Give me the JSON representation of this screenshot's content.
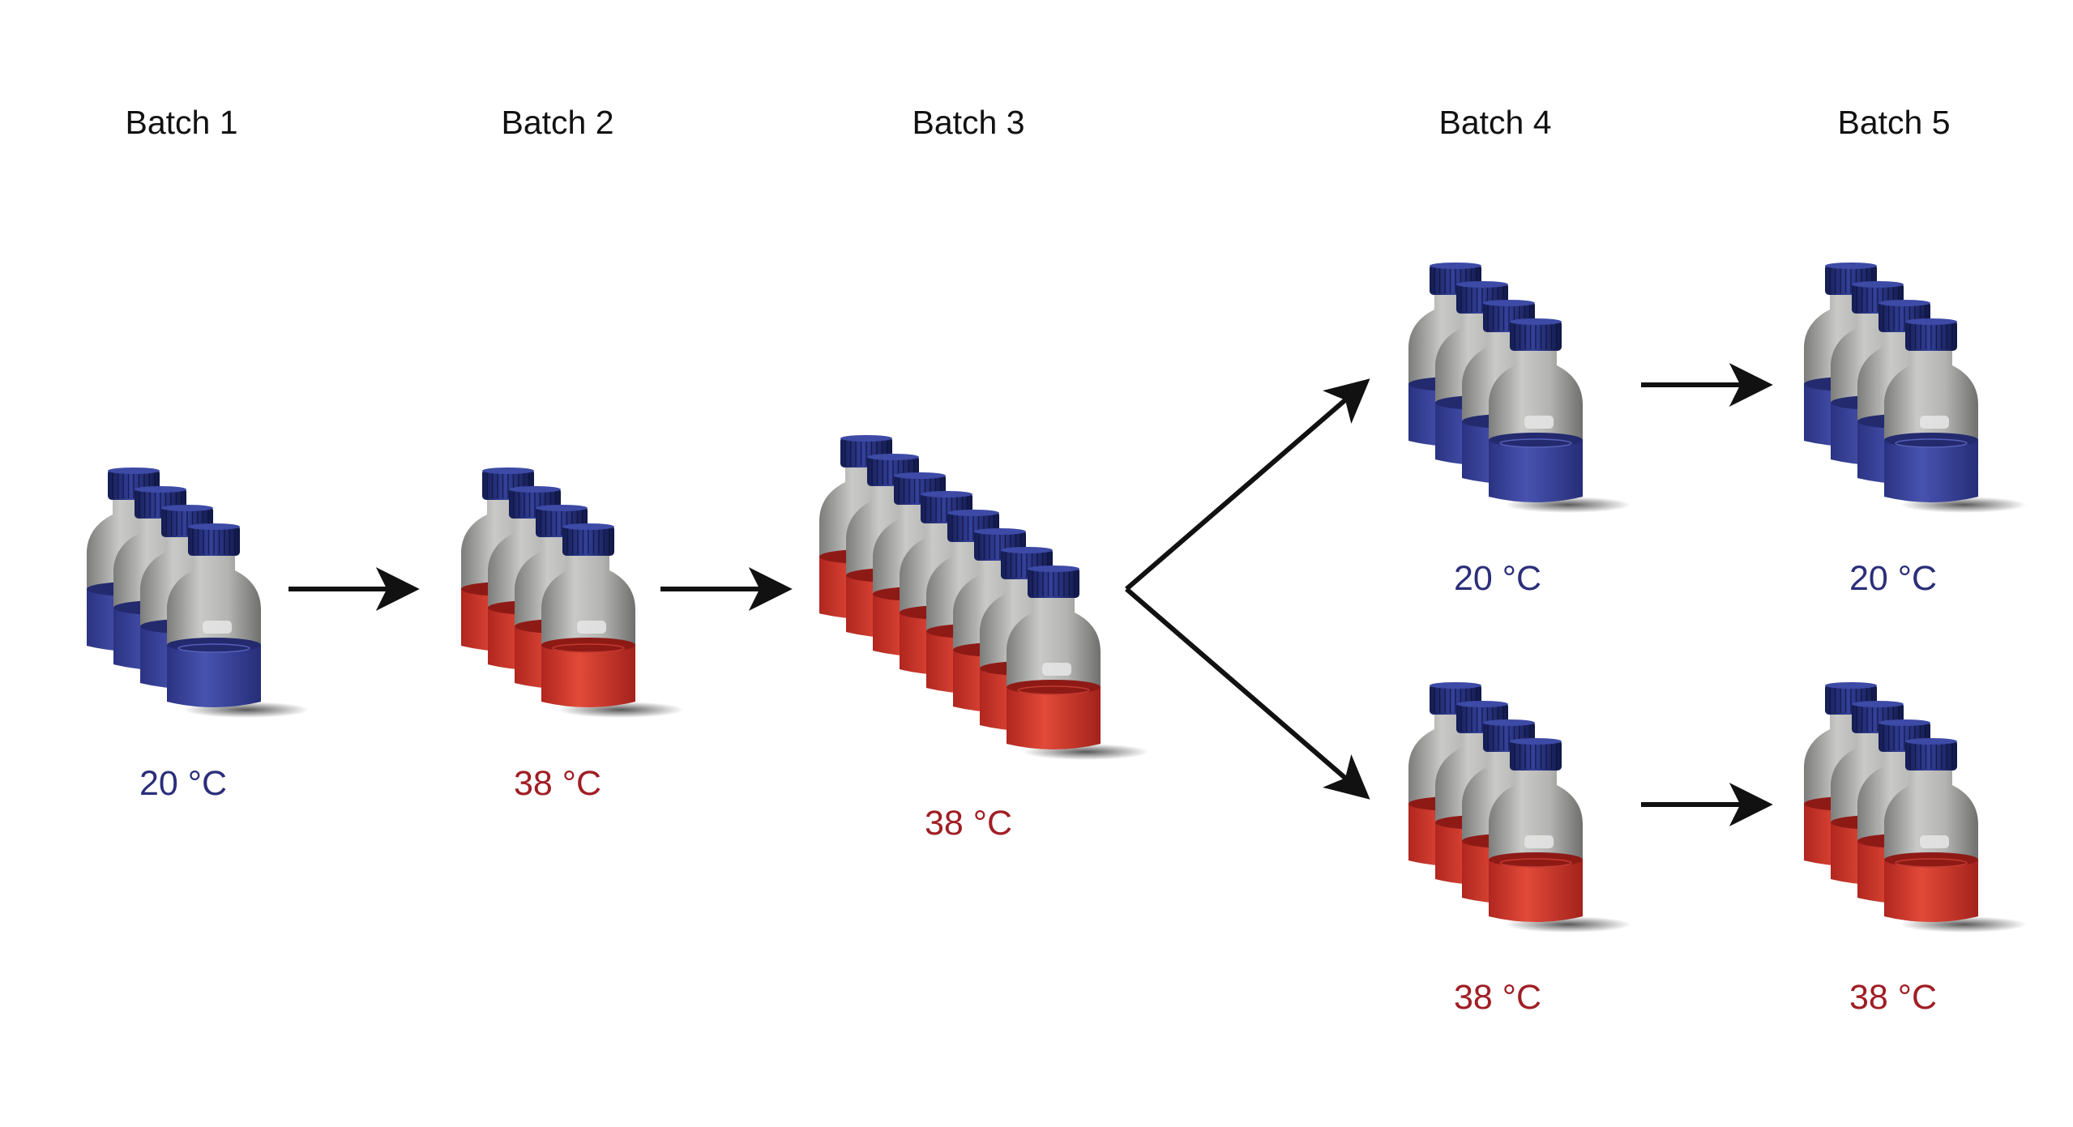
{
  "batches": [
    {
      "title": "Batch 1"
    },
    {
      "title": "Batch 2"
    },
    {
      "title": "Batch 3"
    },
    {
      "title": "Batch 4"
    },
    {
      "title": "Batch 5"
    }
  ],
  "temps": {
    "b1": {
      "text": "20 °C",
      "tone": "cold"
    },
    "b2": {
      "text": "38 °C",
      "tone": "hot"
    },
    "b3": {
      "text": "38 °C",
      "tone": "hot"
    },
    "b4_top": {
      "text": "20 °C",
      "tone": "cold"
    },
    "b4_bottom": {
      "text": "38 °C",
      "tone": "hot"
    },
    "b5_top": {
      "text": "20 °C",
      "tone": "cold"
    },
    "b5_bottom": {
      "text": "38 °C",
      "tone": "hot"
    }
  },
  "groups": [
    {
      "id": "b1",
      "bottles": 4,
      "tone": "cold"
    },
    {
      "id": "b2",
      "bottles": 4,
      "tone": "hot"
    },
    {
      "id": "b3",
      "bottles": 8,
      "tone": "hot"
    },
    {
      "id": "b4_top",
      "bottles": 4,
      "tone": "cold"
    },
    {
      "id": "b4_bottom",
      "bottles": 4,
      "tone": "hot"
    },
    {
      "id": "b5_top",
      "bottles": 4,
      "tone": "cold"
    },
    {
      "id": "b5_bottom",
      "bottles": 4,
      "tone": "hot"
    }
  ],
  "colors": {
    "cold": "#2b2e7a",
    "hot": "#a01e24",
    "cold_liquid": "#3a46a0",
    "hot_liquid": "#d23a2c",
    "cap": "#1e2a6e",
    "glass": "#a9aaa8",
    "arrow": "#111111"
  },
  "icons": {
    "bottle": "lab-media-bottle-icon",
    "arrow": "right-arrow-icon"
  }
}
